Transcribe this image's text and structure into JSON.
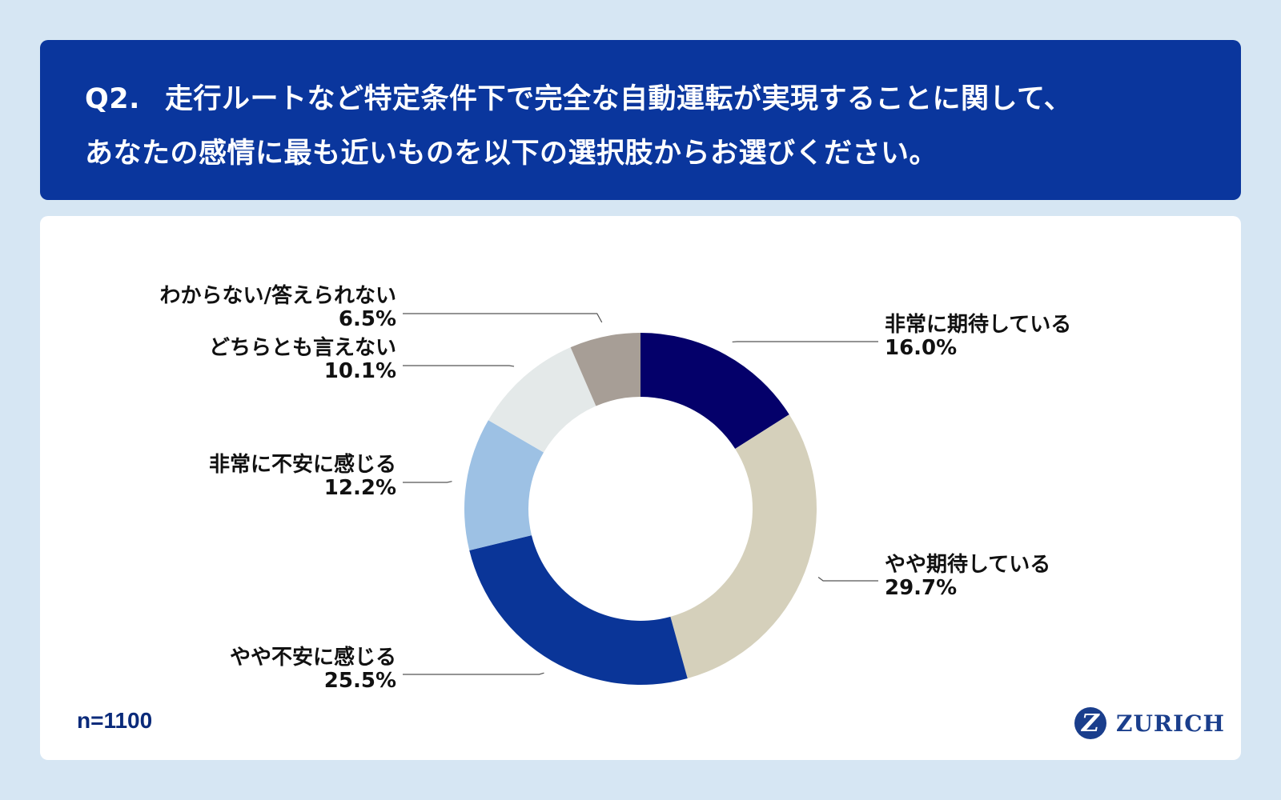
{
  "header": {
    "qnum": "Q2.",
    "line1": "走行ルートなど特定条件下で完全な自動運転が実現することに関して、",
    "line2": "あなたの感情に最も近いものを以下の選択肢からお選びください。"
  },
  "footer": {
    "n_label": "n=1100",
    "logo_mark": "Z",
    "logo_text": "ZURICH"
  },
  "colors": {
    "header_bg": "#0a369d",
    "page_bg": "#d6e6f3"
  },
  "chart_data": {
    "type": "pie",
    "donut": true,
    "start_angle_deg": 0,
    "direction": "clockwise",
    "unit": "%",
    "slices": [
      {
        "label": "非常に期待している",
        "value": 16.0,
        "display": "16.0%",
        "color": "#04006a"
      },
      {
        "label": "やや期待している",
        "value": 29.7,
        "display": "29.7%",
        "color": "#d5d0bb"
      },
      {
        "label": "やや不安に感じる",
        "value": 25.5,
        "display": "25.5%",
        "color": "#0a3598"
      },
      {
        "label": "非常に不安に感じる",
        "value": 12.2,
        "display": "12.2%",
        "color": "#9dc1e4"
      },
      {
        "label": "どちらとも言えない",
        "value": 10.1,
        "display": "10.1%",
        "color": "#e4e9e9"
      },
      {
        "label": "わからない/答えられない",
        "value": 6.5,
        "display": "6.5%",
        "color": "#a79e96"
      }
    ]
  }
}
